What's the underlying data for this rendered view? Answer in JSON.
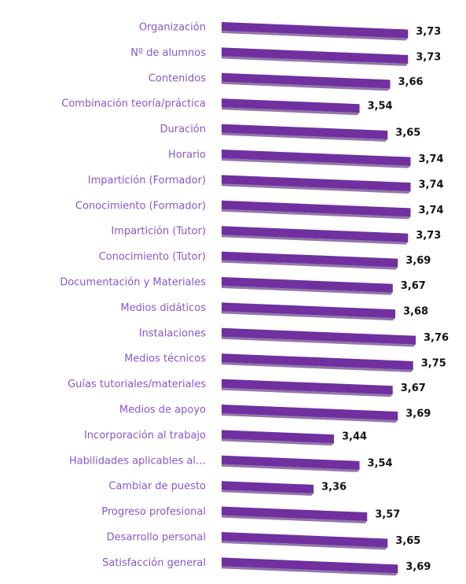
{
  "chart_data": {
    "type": "bar",
    "orientation": "horizontal",
    "categories": [
      "Organización",
      "Nº de alumnos",
      "Contenidos",
      "Combinación teoría/práctica",
      "Duración",
      "Horario",
      "Impartición (Formador)",
      "Conocimiento (Formador)",
      "Impartición (Tutor)",
      "Conocimiento (Tutor)",
      "Documentación y Materiales",
      "Medios didáticos",
      "Instalaciones",
      "Medios técnicos",
      "Guías tutoriales/materiales",
      "Medios de apoyo",
      "Incorporación al trabajo",
      "Habilidades aplicables al…",
      "Cambiar de puesto",
      "Progreso profesional",
      "Desarrollo personal",
      "Satisfacción general"
    ],
    "values": [
      3.73,
      3.73,
      3.66,
      3.54,
      3.65,
      3.74,
      3.74,
      3.74,
      3.73,
      3.69,
      3.67,
      3.68,
      3.76,
      3.75,
      3.67,
      3.69,
      3.44,
      3.54,
      3.36,
      3.57,
      3.65,
      3.69
    ],
    "value_labels": [
      "3,73",
      "3,73",
      "3,66",
      "3,54",
      "3,65",
      "3,74",
      "3,74",
      "3,74",
      "3,73",
      "3,69",
      "3,67",
      "3,68",
      "3,76",
      "3,75",
      "3,67",
      "3,69",
      "3,44",
      "3,54",
      "3,36",
      "3,57",
      "3,65",
      "3,69"
    ],
    "color": "#7030a0",
    "xlim": [
      3,
      3.8
    ]
  }
}
